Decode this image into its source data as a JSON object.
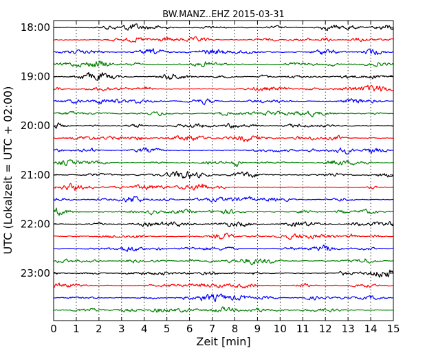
{
  "chart_data": {
    "type": "line",
    "title": "BW.MANZ..EHZ 2015-03-31",
    "xlabel": "Zeit  [min]",
    "ylabel": "UTC (Lokalzeit = UTC + 02:00)",
    "xlim": [
      0,
      15
    ],
    "x_ticks": [
      "0",
      "1",
      "2",
      "3",
      "4",
      "5",
      "6",
      "7",
      "8",
      "9",
      "10",
      "11",
      "12",
      "13",
      "14",
      "15"
    ],
    "y_ticks": [
      "18:00",
      "19:00",
      "20:00",
      "21:00",
      "22:00",
      "23:00"
    ],
    "grid": "vertical dotted",
    "series": [
      {
        "values": [],
        "color": "#000000"
      },
      {
        "values": [],
        "color": "#ff0000"
      },
      {
        "values": [],
        "color": "#0000ff"
      },
      {
        "values": [],
        "color": "#008000"
      },
      {
        "values": [],
        "color": "#000000"
      },
      {
        "values": [],
        "color": "#ff0000"
      },
      {
        "values": [],
        "color": "#0000ff"
      },
      {
        "values": [],
        "color": "#008000"
      },
      {
        "values": [],
        "color": "#000000"
      },
      {
        "values": [],
        "color": "#ff0000"
      },
      {
        "values": [],
        "color": "#0000ff"
      },
      {
        "values": [],
        "color": "#008000"
      },
      {
        "values": [],
        "color": "#000000"
      },
      {
        "values": [],
        "color": "#ff0000"
      },
      {
        "values": [],
        "color": "#0000ff"
      },
      {
        "values": [],
        "color": "#008000"
      },
      {
        "values": [],
        "color": "#000000"
      },
      {
        "values": [],
        "color": "#ff0000"
      },
      {
        "values": [],
        "color": "#0000ff"
      },
      {
        "values": [],
        "color": "#008000"
      },
      {
        "values": [],
        "color": "#000000"
      },
      {
        "values": [],
        "color": "#ff0000"
      },
      {
        "values": [],
        "color": "#0000ff"
      },
      {
        "values": [],
        "color": "#008000"
      }
    ]
  }
}
